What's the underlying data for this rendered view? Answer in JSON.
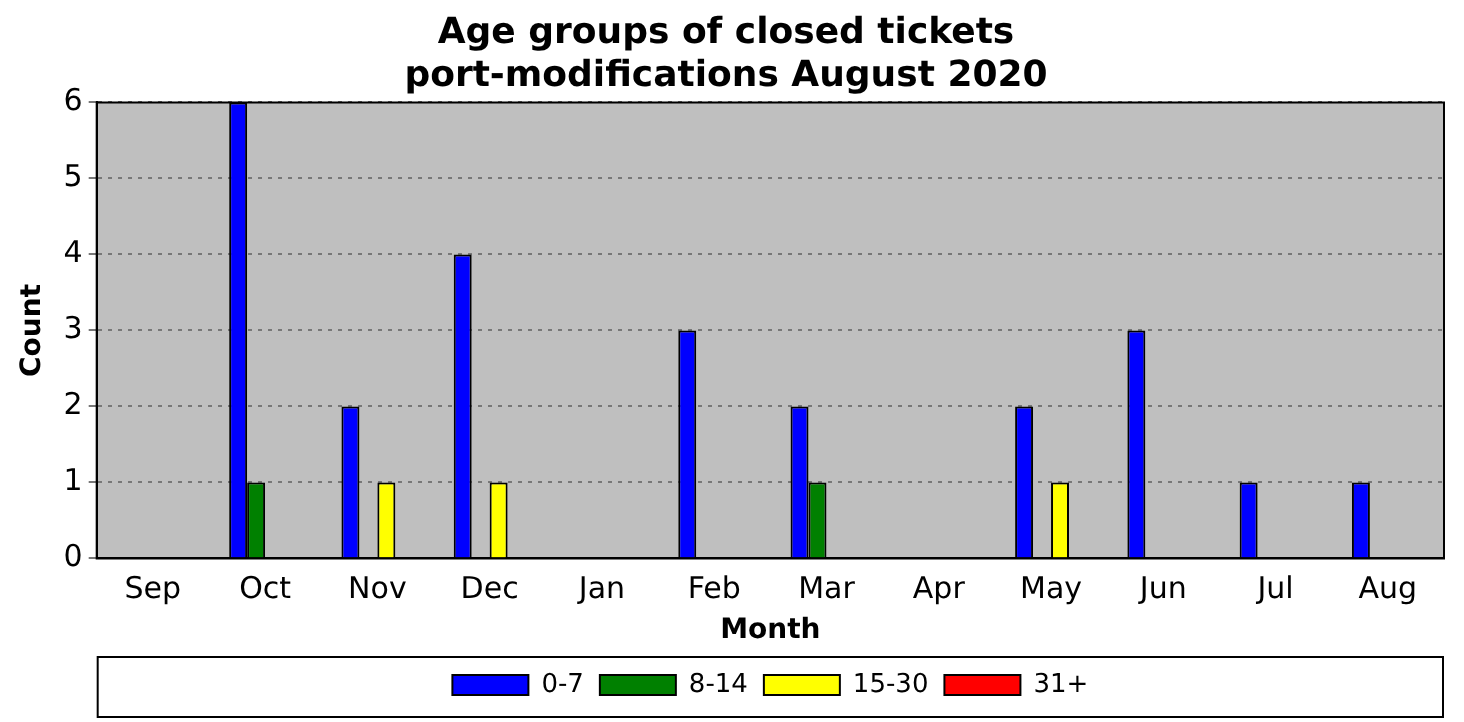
{
  "chart_data": {
    "type": "bar",
    "title": "Age groups of closed tickets\nport-modifications August 2020",
    "xlabel": "Month",
    "ylabel": "Count",
    "categories": [
      "Sep",
      "Oct",
      "Nov",
      "Dec",
      "Jan",
      "Feb",
      "Mar",
      "Apr",
      "May",
      "Jun",
      "Jul",
      "Aug"
    ],
    "series": [
      {
        "name": "0-7",
        "color": "#0000ff",
        "values": [
          0,
          6,
          2,
          4,
          0,
          3,
          2,
          0,
          2,
          3,
          1,
          1
        ]
      },
      {
        "name": "8-14",
        "color": "#008000",
        "values": [
          0,
          1,
          0,
          0,
          0,
          0,
          1,
          0,
          0,
          0,
          0,
          0
        ]
      },
      {
        "name": "15-30",
        "color": "#ffff00",
        "values": [
          0,
          0,
          1,
          1,
          0,
          0,
          0,
          0,
          1,
          0,
          0,
          0
        ]
      },
      {
        "name": "31+",
        "color": "#ff0000",
        "values": [
          0,
          0,
          0,
          0,
          0,
          0,
          0,
          0,
          0,
          0,
          0,
          0
        ]
      }
    ],
    "ylim": [
      0,
      6
    ],
    "yticks": [
      0,
      1,
      2,
      3,
      4,
      5,
      6
    ],
    "grid": "y",
    "legend": "bottom"
  }
}
